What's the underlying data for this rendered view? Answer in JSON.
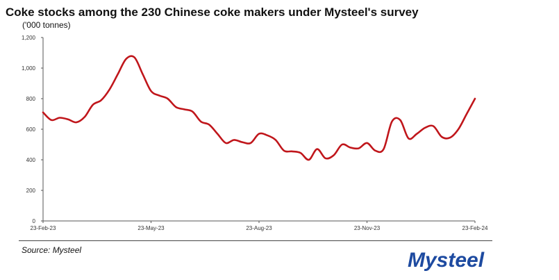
{
  "title": "Coke stocks among the 230 Chinese coke makers under Mysteel's survey",
  "subtitle": "('000 tonnes)",
  "source": "Source: Mysteel",
  "logo_text": "Mysteel",
  "colors": {
    "line": "#c0161b",
    "axis": "#555555",
    "logo": "#1d4aa0"
  },
  "chart_data": {
    "type": "line",
    "title": "Coke stocks among the 230 Chinese coke makers under Mysteel's survey",
    "ylabel": "('000 tonnes)",
    "ylim": [
      0,
      1200
    ],
    "yticks": [
      0,
      200,
      400,
      600,
      800,
      1000,
      1200
    ],
    "ytick_labels": [
      "0",
      "200",
      "400",
      "600",
      "800",
      "1,000",
      "1,200"
    ],
    "xticks": [
      "23-Feb-23",
      "23-May-23",
      "23-Aug-23",
      "23-Nov-23",
      "23-Feb-24"
    ],
    "grid": false,
    "x_unit": "weeks",
    "series": [
      {
        "values": [
          710,
          660,
          675,
          665,
          645,
          680,
          760,
          790,
          860,
          960,
          1060,
          1070,
          960,
          850,
          820,
          800,
          745,
          730,
          715,
          650,
          630,
          570,
          510,
          530,
          515,
          510,
          570,
          560,
          530,
          460,
          455,
          445,
          400,
          470,
          410,
          430,
          500,
          480,
          475,
          510,
          460,
          470,
          650,
          660,
          540,
          570,
          610,
          620,
          550,
          545,
          600,
          700,
          800
        ]
      }
    ]
  }
}
